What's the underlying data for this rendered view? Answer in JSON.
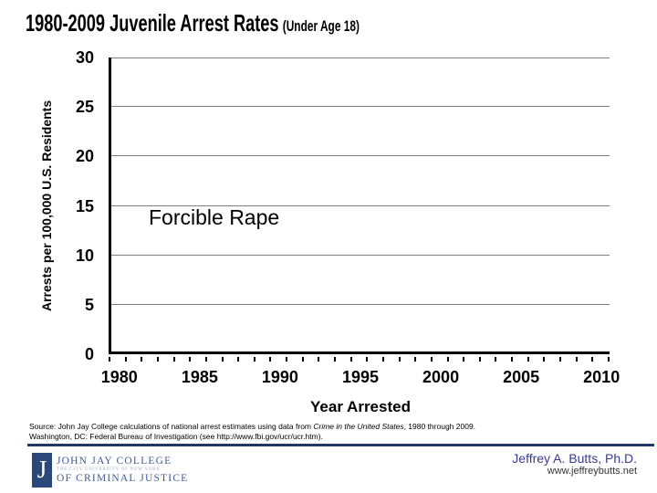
{
  "slide": {
    "title_main": "1980-2009 Juvenile Arrest Rates",
    "title_sub": "(Under Age 18)"
  },
  "chart_data": {
    "type": "line",
    "title": "1980-2009 Juvenile Arrest Rates (Under Age 18)",
    "annotation": "Forcible Rape",
    "xlabel": "Year Arrested",
    "ylabel": "Arrests per 100,000 U.S. Residents",
    "xlim": [
      1980,
      2010
    ],
    "ylim": [
      0,
      30
    ],
    "x_major_ticks": [
      1980,
      1985,
      1990,
      1995,
      2000,
      2005,
      2010
    ],
    "x_minor_tick_step_years": 1,
    "y_ticks": [
      0,
      5,
      10,
      15,
      20,
      25,
      30
    ],
    "grid": "horizontal-gray",
    "legend": "none",
    "series": []
  },
  "source": {
    "line1_prefix": "Source: John Jay College calculations of national arrest estimates using data from ",
    "line1_italic": "Crime in the United States",
    "line1_suffix": ", 1980 through 2009.",
    "line2_prefix": "Washington, DC: Federal Bureau of Investigation (see ",
    "line2_url": "http://www.fbi.gov/ucr/ucr.htm",
    "line2_suffix": ")."
  },
  "footer": {
    "logo": {
      "letter": "J",
      "line1": "JOHN JAY COLLEGE",
      "line2": "THE CITY UNIVERSITY OF NEW YORK",
      "line3": "OF CRIMINAL JUSTICE"
    },
    "author": "Jeffrey A. Butts, Ph.D.",
    "website": "www.jeffreybutts.net"
  },
  "colors": {
    "footer_rule": "#1F3864",
    "logo_navy": "#2C4878",
    "logo_blue": "#3D5C94",
    "logo_light_blue": "#9FAECB",
    "author_blue": "#3A3A94",
    "grid_gray": "#808080",
    "axis_black": "#000000"
  }
}
